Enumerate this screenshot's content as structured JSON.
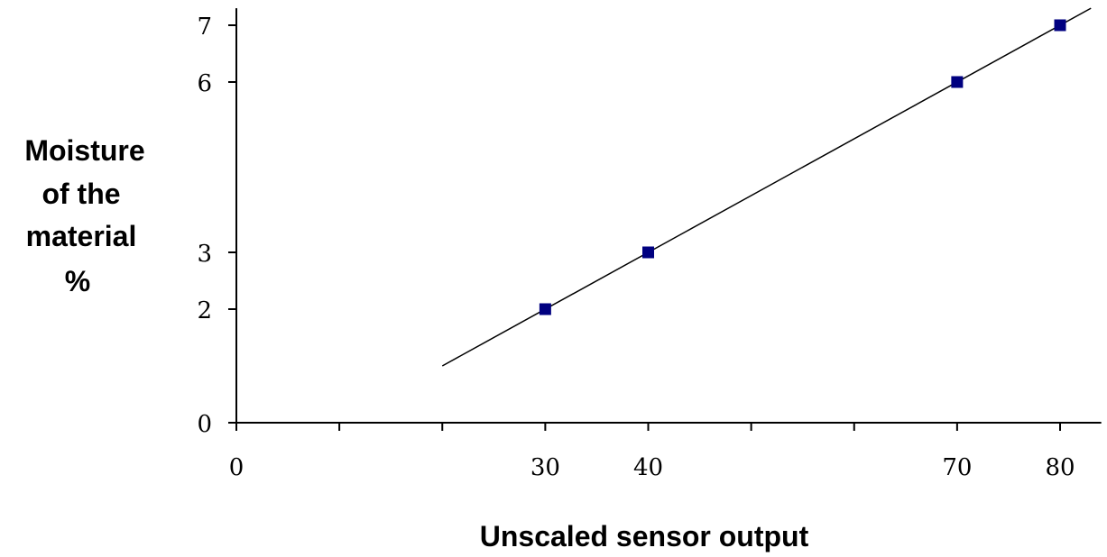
{
  "chart_data": {
    "type": "scatter",
    "title": "",
    "xlabel": "Unscaled sensor output",
    "ylabel_lines": [
      "Moisture",
      "of the",
      "material",
      "%"
    ],
    "x_ticks_labeled": [
      0,
      30,
      40,
      70,
      80
    ],
    "x_tick_marks": [
      0,
      10,
      20,
      30,
      40,
      50,
      60,
      70,
      80
    ],
    "y_ticks_labeled": [
      0,
      2,
      3,
      6,
      7
    ],
    "xlim": [
      0,
      84
    ],
    "ylim": [
      0,
      7.3
    ],
    "grid": false,
    "legend": "none",
    "series": [
      {
        "x": [
          30,
          40,
          70,
          80
        ],
        "y": [
          2,
          3,
          6,
          7
        ],
        "marker": "square",
        "color": "#000080"
      }
    ],
    "trendline": {
      "slope": 0.1,
      "intercept": -1,
      "x_range": [
        20,
        83
      ],
      "color": "#000000"
    }
  }
}
